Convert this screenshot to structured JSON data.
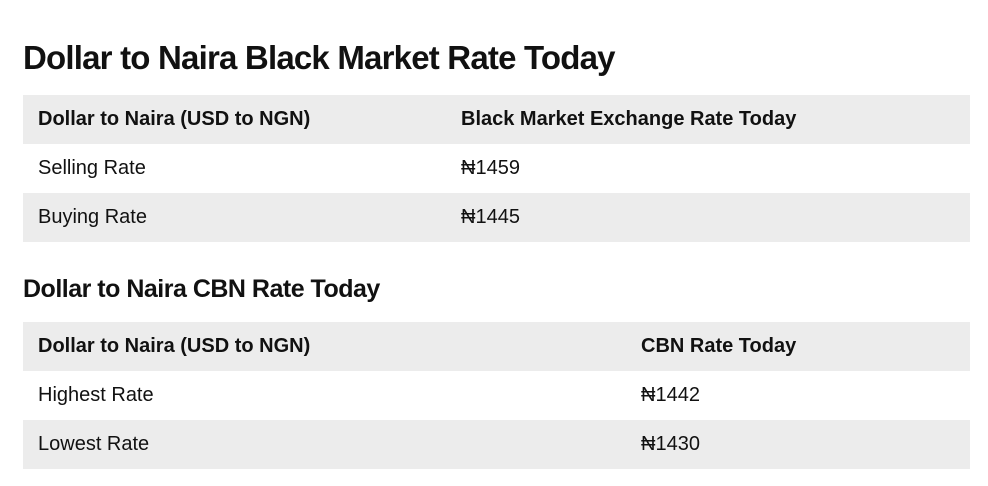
{
  "black_market": {
    "title": "Dollar to Naira Black Market Rate Today",
    "headers": [
      "Dollar to Naira (USD to NGN)",
      "Black Market Exchange Rate Today"
    ],
    "rows": [
      {
        "label": "Selling Rate",
        "value": "₦1459"
      },
      {
        "label": "Buying Rate",
        "value": "₦1445"
      }
    ]
  },
  "cbn": {
    "title": "Dollar to Naira CBN Rate Today",
    "headers": [
      "Dollar to Naira (USD to NGN)",
      "CBN Rate Today"
    ],
    "rows": [
      {
        "label": "Highest Rate",
        "value": "₦1442"
      },
      {
        "label": "Lowest Rate",
        "value": "₦1430"
      }
    ]
  },
  "colors": {
    "header_bg": "#ececec",
    "row_alt_bg": "#ececec",
    "text": "#111111"
  }
}
